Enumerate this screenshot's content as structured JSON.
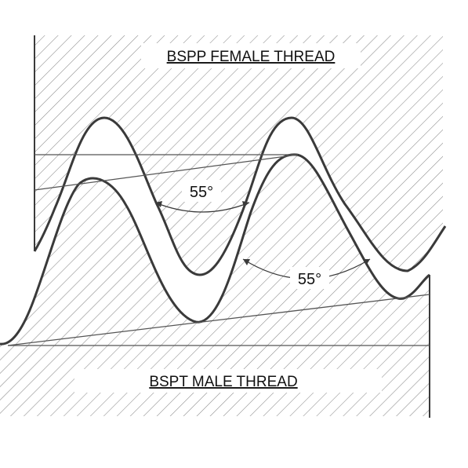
{
  "female_label": "BSPP FEMALE THREAD",
  "male_label": "BSPT MALE THREAD",
  "angle_upper": "55°",
  "angle_lower": "55°",
  "colors": {
    "line": "#3a3a3a",
    "hatch": "#8a8a8a",
    "background": "#ffffff"
  }
}
